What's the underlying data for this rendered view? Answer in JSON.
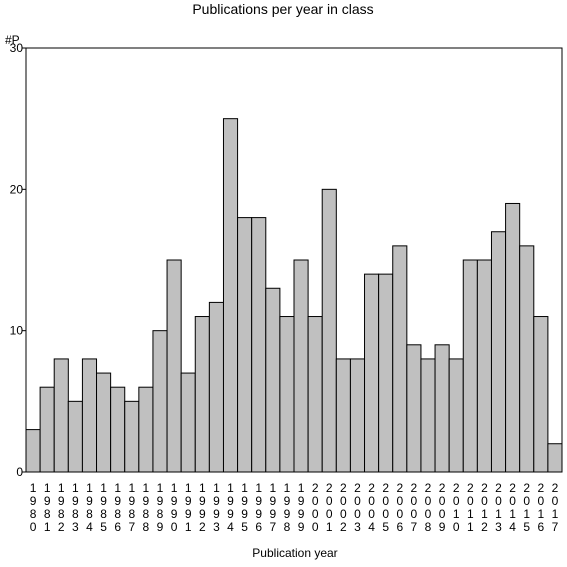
{
  "chart_data": {
    "type": "bar",
    "title": "Publications per year in class",
    "ylabel": "#P",
    "xlabel": "Publication year",
    "ylim": [
      0,
      30
    ],
    "yticks": [
      0,
      10,
      20,
      30
    ],
    "grid": false,
    "bar_color": "#c0c0c0",
    "categories": [
      "1980",
      "1981",
      "1982",
      "1983",
      "1984",
      "1985",
      "1986",
      "1987",
      "1988",
      "1989",
      "1990",
      "1991",
      "1992",
      "1993",
      "1994",
      "1995",
      "1996",
      "1997",
      "1998",
      "1999",
      "2000",
      "2001",
      "2002",
      "2003",
      "2004",
      "2005",
      "2006",
      "2007",
      "2008",
      "2009",
      "2010",
      "2011",
      "2012",
      "2013",
      "2014",
      "2015",
      "2016",
      "2017"
    ],
    "values": [
      3,
      6,
      8,
      5,
      8,
      7,
      6,
      5,
      6,
      10,
      15,
      7,
      11,
      12,
      25,
      18,
      18,
      13,
      11,
      15,
      11,
      20,
      8,
      8,
      14,
      14,
      16,
      9,
      8,
      9,
      8,
      15,
      15,
      17,
      19,
      16,
      11,
      2
    ]
  }
}
